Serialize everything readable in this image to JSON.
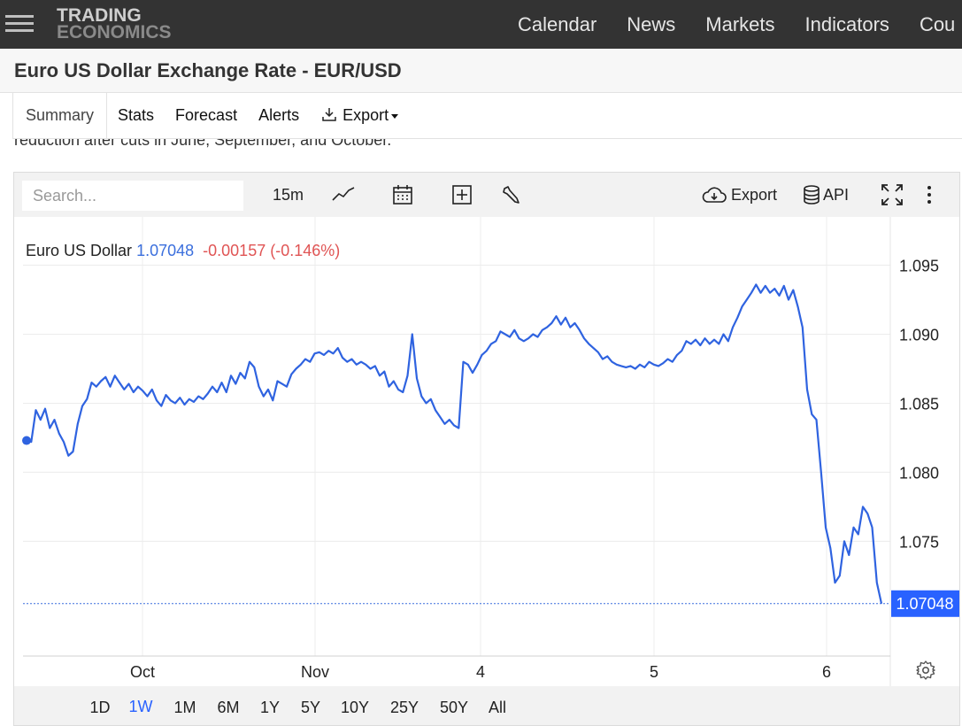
{
  "topbar": {
    "logo_line1": "TRADING",
    "logo_line2": "ECONOMICS",
    "nav": [
      "Calendar",
      "News",
      "Markets",
      "Indicators",
      "Cou"
    ]
  },
  "title": "Euro US Dollar Exchange Rate - EUR/USD",
  "tabs": {
    "summary": "Summary",
    "stats": "Stats",
    "forecast": "Forecast",
    "alerts": "Alerts",
    "export": "Export"
  },
  "partial_text": "reduction after cuts in June, September, and October.",
  "toolbar": {
    "search_placeholder": "Search...",
    "interval": "15m",
    "export_label": "Export",
    "api_label": "API"
  },
  "legend": {
    "name": "Euro US Dollar",
    "value": "1.07048",
    "change": "-0.00157",
    "change_pct": "(-0.146%)"
  },
  "ranges": [
    "1D",
    "1W",
    "1M",
    "6M",
    "1Y",
    "5Y",
    "10Y",
    "25Y",
    "50Y",
    "All"
  ],
  "active_range": "1W",
  "colors": {
    "line": "#2f63e0",
    "accent": "#2962ff",
    "negative": "#e05454",
    "topbar": "#333333"
  },
  "chart_data": {
    "type": "line",
    "series": [
      {
        "name": "Euro US Dollar",
        "values": [
          1.0823,
          1.0822,
          1.0845,
          1.0838,
          1.0846,
          1.0832,
          1.0838,
          1.0828,
          1.0822,
          1.0812,
          1.0815,
          1.0835,
          1.0848,
          1.0853,
          1.0865,
          1.0862,
          1.0866,
          1.0869,
          1.0862,
          1.087,
          1.0865,
          1.086,
          1.0864,
          1.0858,
          1.0862,
          1.0859,
          1.0855,
          1.086,
          1.0852,
          1.0848,
          1.0856,
          1.0852,
          1.085,
          1.0854,
          1.0849,
          1.0853,
          1.0851,
          1.0855,
          1.0853,
          1.0857,
          1.0862,
          1.0858,
          1.0865,
          1.0858,
          1.087,
          1.0864,
          1.0872,
          1.0868,
          1.088,
          1.0876,
          1.0862,
          1.0855,
          1.086,
          1.0852,
          1.0866,
          1.0864,
          1.0862,
          1.0871,
          1.0875,
          1.0878,
          1.0882,
          1.088,
          1.0886,
          1.0887,
          1.0885,
          1.0888,
          1.0886,
          1.089,
          1.0883,
          1.088,
          1.0882,
          1.0878,
          1.088,
          1.0878,
          1.0875,
          1.0877,
          1.087,
          1.0873,
          1.0862,
          1.0866,
          1.086,
          1.0858,
          1.087,
          1.09,
          1.0868,
          1.0855,
          1.085,
          1.0853,
          1.0845,
          1.084,
          1.0835,
          1.0838,
          1.0834,
          1.0832,
          1.088,
          1.0878,
          1.0872,
          1.0878,
          1.0885,
          1.0888,
          1.0893,
          1.0895,
          1.0902,
          1.09,
          1.0898,
          1.0903,
          1.0897,
          1.0895,
          1.0897,
          1.09,
          1.0898,
          1.0903,
          1.0905,
          1.0908,
          1.0913,
          1.0907,
          1.0912,
          1.0905,
          1.0908,
          1.0903,
          1.0897,
          1.0893,
          1.089,
          1.0887,
          1.0882,
          1.0884,
          1.088,
          1.0878,
          1.0877,
          1.0876,
          1.0877,
          1.0875,
          1.0878,
          1.0876,
          1.088,
          1.0878,
          1.0877,
          1.0879,
          1.0882,
          1.088,
          1.0885,
          1.0888,
          1.0895,
          1.0893,
          1.0896,
          1.0892,
          1.0897,
          1.0893,
          1.0896,
          1.0893,
          1.09,
          1.0895,
          1.0905,
          1.0912,
          1.092,
          1.0925,
          1.093,
          1.0936,
          1.093,
          1.0935,
          1.093,
          1.0933,
          1.0928,
          1.0935,
          1.0925,
          1.0932,
          1.092,
          1.0905,
          1.086,
          1.0842,
          1.0838,
          1.08,
          1.076,
          1.0745,
          1.072,
          1.0725,
          1.075,
          1.074,
          1.076,
          1.0755,
          1.0775,
          1.077,
          1.076,
          1.072,
          1.07048
        ]
      }
    ],
    "x_tick_labels": [
      "Oct",
      "Nov",
      "4",
      "5",
      "6"
    ],
    "y_ticks": [
      1.095,
      1.09,
      1.085,
      1.08,
      1.075
    ],
    "ylim": [
      1.0645,
      1.0985
    ],
    "last_value": 1.07048,
    "last_label": "1.07048",
    "grid": true
  }
}
